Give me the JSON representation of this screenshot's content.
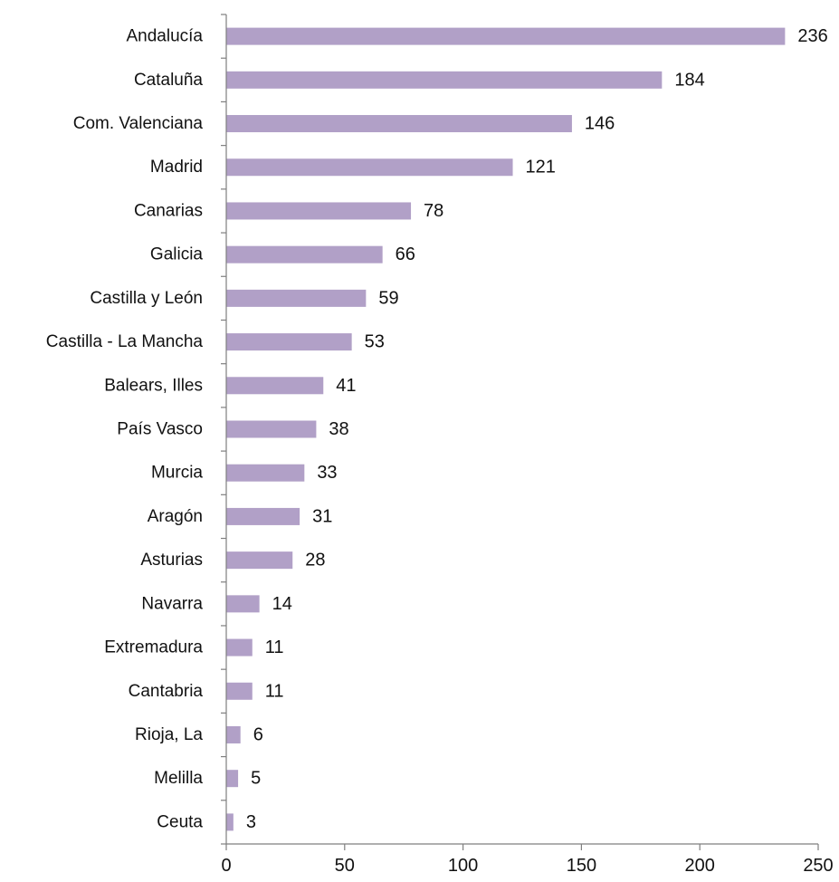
{
  "chart_data": {
    "type": "bar",
    "orientation": "horizontal",
    "title": "",
    "xlabel": "",
    "ylabel": "",
    "categories": [
      "Andalucía",
      "Cataluña",
      "Com. Valenciana",
      "Madrid",
      "Canarias",
      "Galicia",
      "Castilla y León",
      "Castilla - La Mancha",
      "Balears, Illes",
      "País Vasco",
      "Murcia",
      "Aragón",
      "Asturias",
      "Navarra",
      "Extremadura",
      "Cantabria",
      "Rioja, La",
      "Melilla",
      "Ceuta"
    ],
    "values": [
      236,
      184,
      146,
      121,
      78,
      66,
      59,
      53,
      41,
      38,
      33,
      31,
      28,
      14,
      11,
      11,
      6,
      5,
      3
    ],
    "value_labels": [
      "236",
      "184",
      "146",
      "121",
      "78",
      "66",
      "59",
      "53",
      "41",
      "38",
      "33",
      "31",
      "28",
      "14",
      "11",
      "11",
      "6",
      "5",
      "3"
    ],
    "xlim": [
      0,
      250
    ],
    "x_ticks": [
      0,
      50,
      100,
      150,
      200,
      250
    ],
    "x_tick_labels": [
      "0",
      "50",
      "100",
      "150",
      "200",
      "250"
    ],
    "grid": false,
    "legend": "none",
    "bar_color": "#b1a0c7"
  }
}
